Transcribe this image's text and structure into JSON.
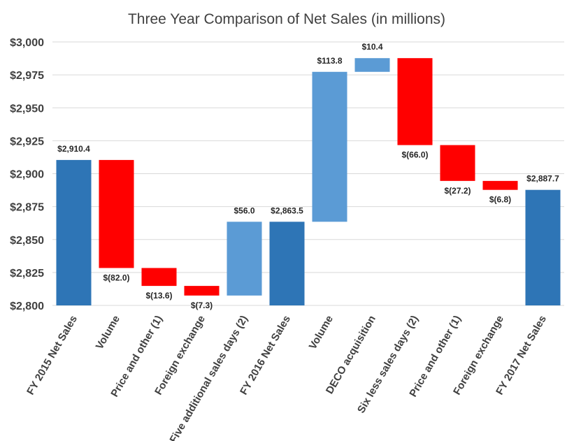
{
  "chart_data": {
    "type": "bar",
    "subtype": "waterfall",
    "title": "Three Year Comparison of Net Sales (in millions)",
    "xlabel": "",
    "ylabel": "",
    "ylim": [
      2800,
      3000
    ],
    "yticks": [
      2800,
      2825,
      2850,
      2875,
      2900,
      2925,
      2950,
      2975,
      3000
    ],
    "ytick_labels": [
      "$2,800",
      "$2,825",
      "$2,850",
      "$2,875",
      "$2,900",
      "$2,925",
      "$2,950",
      "$2,975",
      "$3,000"
    ],
    "grid": true,
    "legend": "none",
    "colors": {
      "total": "#2e75b6",
      "increase": "#5b9bd5",
      "decrease": "#ff0000"
    },
    "categories": [
      "FY 2015 Net Sales",
      "Volume",
      "Price and other (1)",
      "Foreign exchange",
      "Five additional sales days (2)",
      "FY 2016 Net Sales",
      "Volume",
      "DECO acquisition",
      "Six less sales days (2)",
      "Price and other (1)",
      "Foreign exchange",
      "FY 2017 Net Sales"
    ],
    "bars": [
      {
        "kind": "total",
        "start": 2800,
        "end": 2910.4,
        "label": "$2,910.4"
      },
      {
        "kind": "decrease",
        "start": 2910.4,
        "end": 2828.4,
        "label": "$(82.0)"
      },
      {
        "kind": "decrease",
        "start": 2828.4,
        "end": 2814.8,
        "label": "$(13.6)"
      },
      {
        "kind": "decrease",
        "start": 2814.8,
        "end": 2807.5,
        "label": "$(7.3)"
      },
      {
        "kind": "increase",
        "start": 2807.5,
        "end": 2863.5,
        "label": "$56.0"
      },
      {
        "kind": "total",
        "start": 2800,
        "end": 2863.5,
        "label": "$2,863.5"
      },
      {
        "kind": "increase",
        "start": 2863.5,
        "end": 2977.3,
        "label": "$113.8"
      },
      {
        "kind": "increase",
        "start": 2977.3,
        "end": 2987.7,
        "label": "$10.4"
      },
      {
        "kind": "decrease",
        "start": 2987.7,
        "end": 2921.7,
        "label": "$(66.0)"
      },
      {
        "kind": "decrease",
        "start": 2921.7,
        "end": 2894.5,
        "label": "$(27.2)"
      },
      {
        "kind": "decrease",
        "start": 2894.5,
        "end": 2887.7,
        "label": "$(6.8)"
      },
      {
        "kind": "total",
        "start": 2800,
        "end": 2887.7,
        "label": "$2,887.7"
      }
    ]
  }
}
